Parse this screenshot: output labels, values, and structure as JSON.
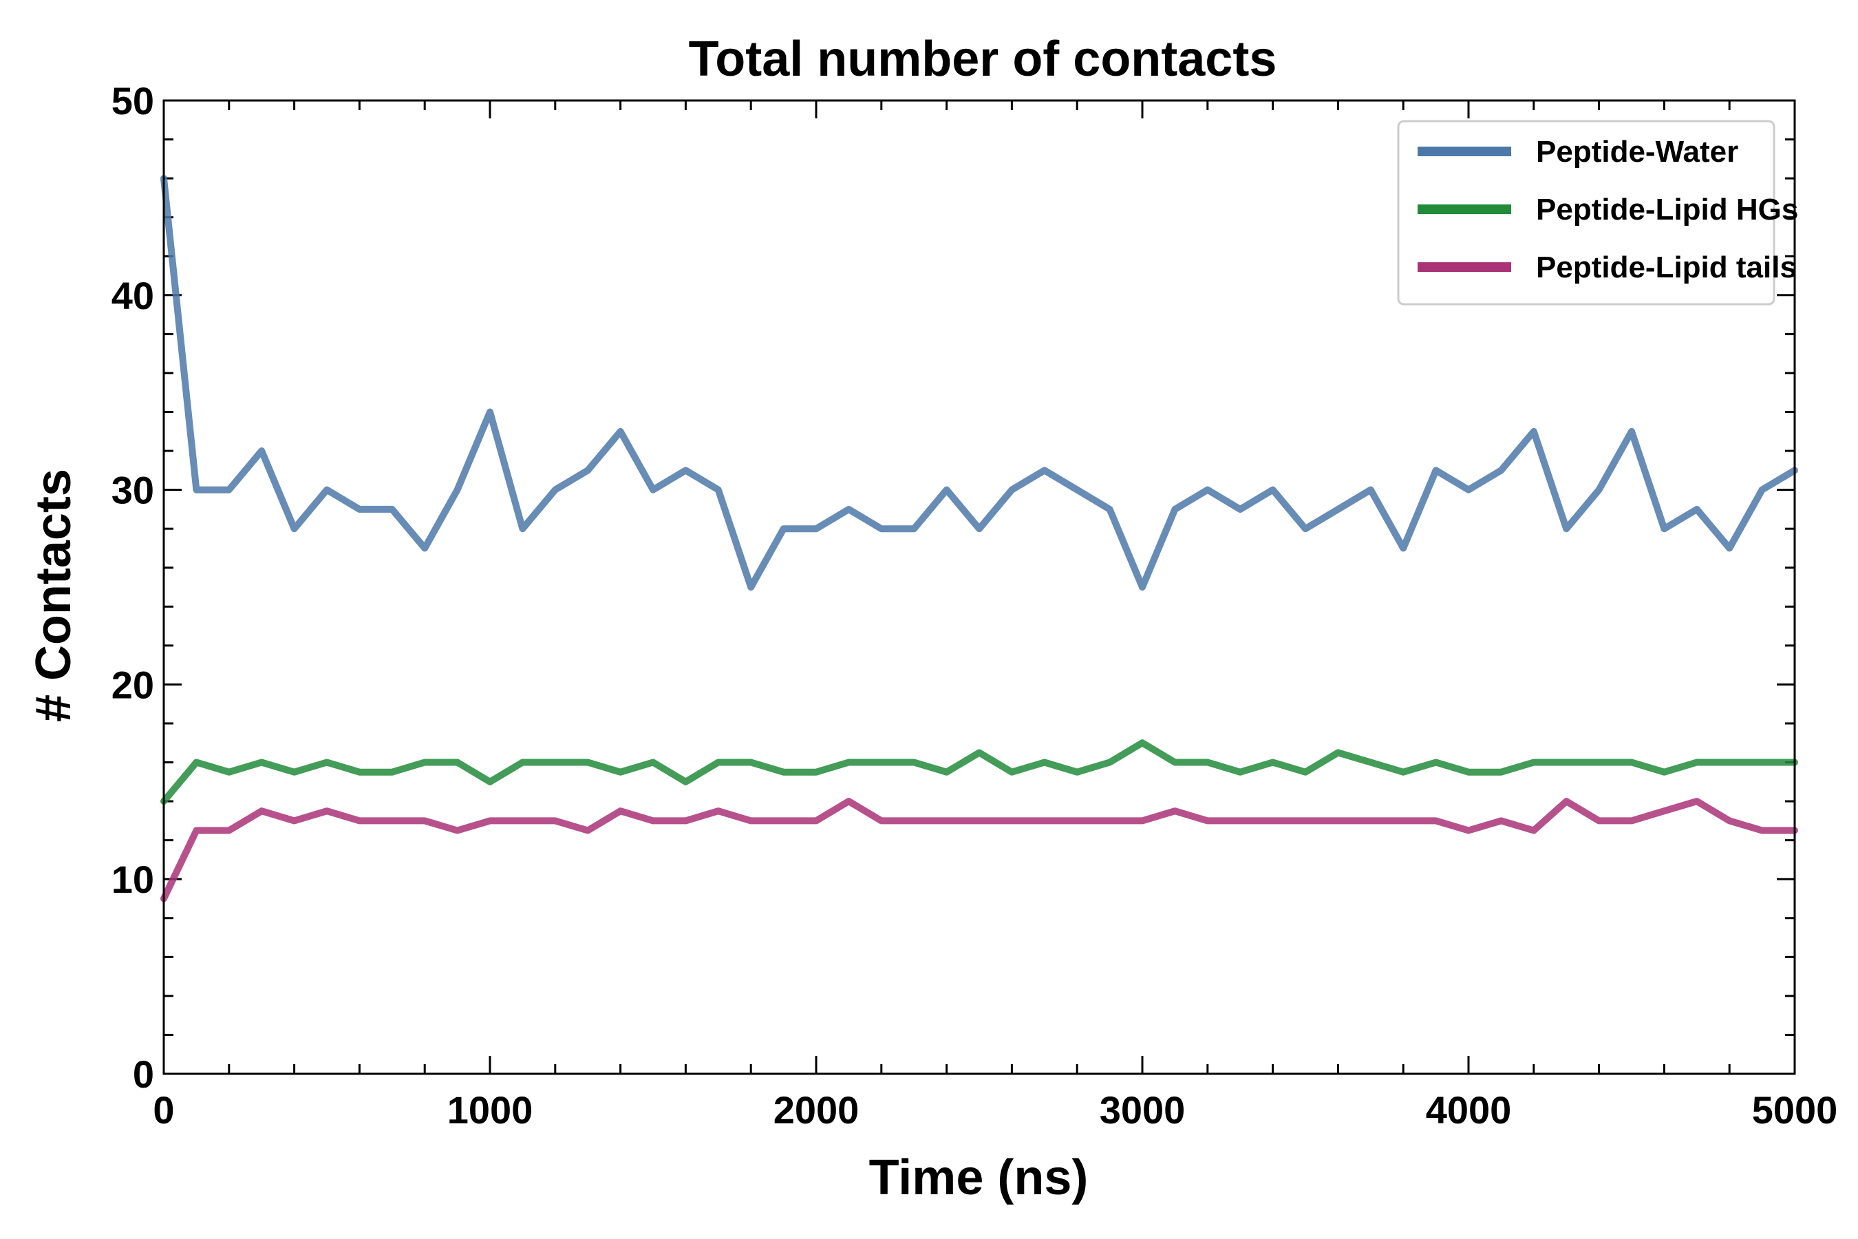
{
  "chart_data": {
    "type": "line",
    "title": "Total number of contacts",
    "xlabel": "Time (ns)",
    "ylabel": "# Contacts",
    "xlim": [
      0,
      5000
    ],
    "ylim": [
      0,
      50
    ],
    "x_ticks": [
      0,
      1000,
      2000,
      3000,
      4000,
      5000
    ],
    "y_ticks": [
      0,
      10,
      20,
      30,
      40,
      50
    ],
    "grid": false,
    "legend_position": "top-right",
    "x": [
      0,
      100,
      200,
      300,
      400,
      500,
      600,
      700,
      800,
      900,
      1000,
      1100,
      1200,
      1300,
      1400,
      1500,
      1600,
      1700,
      1800,
      1900,
      2000,
      2100,
      2200,
      2300,
      2400,
      2500,
      2600,
      2700,
      2800,
      2900,
      3000,
      3100,
      3200,
      3300,
      3400,
      3500,
      3600,
      3700,
      3800,
      3900,
      4000,
      4100,
      4200,
      4300,
      4400,
      4500,
      4600,
      4700,
      4800,
      4900,
      5000
    ],
    "series": [
      {
        "name": "Peptide-Water",
        "color": "#4c78a8",
        "values": [
          46,
          30,
          30,
          32,
          28,
          30,
          29,
          29,
          27,
          30,
          34,
          28,
          30,
          31,
          33,
          30,
          31,
          30,
          25,
          28,
          28,
          29,
          28,
          28,
          30,
          28,
          30,
          31,
          30,
          29,
          25,
          29,
          30,
          29,
          30,
          28,
          29,
          30,
          27,
          31,
          30,
          31,
          33,
          28,
          30,
          33,
          28,
          29,
          27,
          30,
          31
        ]
      },
      {
        "name": "Peptide-Lipid HGs",
        "color": "#228b3a",
        "values": [
          14,
          16,
          15.5,
          16,
          15.5,
          16,
          15.5,
          15.5,
          16,
          16,
          15,
          16,
          16,
          16,
          15.5,
          16,
          15,
          16,
          16,
          15.5,
          15.5,
          16,
          16,
          16,
          15.5,
          16.5,
          15.5,
          16,
          15.5,
          16,
          17,
          16,
          16,
          15.5,
          16,
          15.5,
          16.5,
          16,
          15.5,
          16,
          15.5,
          15.5,
          16,
          16,
          16,
          16,
          15.5,
          16,
          16,
          16,
          16
        ]
      },
      {
        "name": "Peptide-Lipid tails",
        "color": "#aa3377",
        "values": [
          9,
          12.5,
          12.5,
          13.5,
          13,
          13.5,
          13,
          13,
          13,
          12.5,
          13,
          13,
          13,
          12.5,
          13.5,
          13,
          13,
          13.5,
          13,
          13,
          13,
          14,
          13,
          13,
          13,
          13,
          13,
          13,
          13,
          13,
          13,
          13.5,
          13,
          13,
          13,
          13,
          13,
          13,
          13,
          13,
          12.5,
          13,
          12.5,
          14,
          13,
          13,
          13.5,
          14,
          13,
          12.5,
          12.5
        ]
      }
    ]
  }
}
